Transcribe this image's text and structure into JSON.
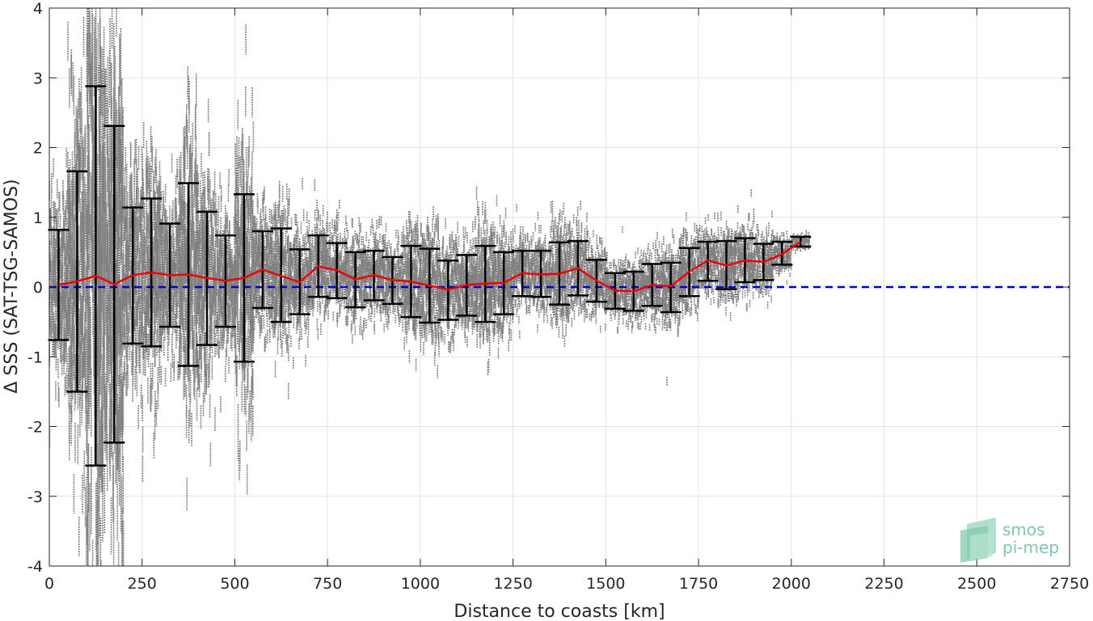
{
  "chart_data": {
    "type": "scatter",
    "xlabel": "Distance to coasts [km]",
    "ylabel": "Δ SSS (SAT-TSG-SAMOS)",
    "xlim": [
      0,
      2750
    ],
    "ylim": [
      -4,
      4
    ],
    "xticks": [
      0,
      250,
      500,
      750,
      1000,
      1250,
      1500,
      1750,
      2000,
      2250,
      2500,
      2750
    ],
    "yticks": [
      -4,
      -3,
      -2,
      -1,
      0,
      1,
      2,
      3,
      4
    ],
    "grid": true,
    "reference_line": {
      "y": 0,
      "color": "#0000cc",
      "style": "dashed"
    },
    "scatter_color": "#808080",
    "series": [
      {
        "type": "errorbar",
        "color": "#000000",
        "x": [
          25,
          75,
          125,
          175,
          225,
          275,
          325,
          375,
          425,
          475,
          525,
          575,
          625,
          675,
          725,
          775,
          825,
          875,
          925,
          975,
          1025,
          1075,
          1125,
          1175,
          1225,
          1275,
          1325,
          1375,
          1425,
          1475,
          1525,
          1575,
          1625,
          1675,
          1725,
          1775,
          1825,
          1875,
          1925,
          1975,
          2025
        ],
        "mean": [
          0.03,
          0.08,
          0.16,
          0.04,
          0.17,
          0.21,
          0.17,
          0.18,
          0.13,
          0.09,
          0.13,
          0.25,
          0.16,
          0.07,
          0.3,
          0.24,
          0.11,
          0.17,
          0.1,
          0.08,
          0.02,
          -0.04,
          0.03,
          0.05,
          0.06,
          0.2,
          0.18,
          0.19,
          0.27,
          0.09,
          -0.05,
          -0.06,
          0.03,
          0.01,
          0.22,
          0.38,
          0.31,
          0.38,
          0.36,
          0.47,
          0.65
        ],
        "upper": [
          0.82,
          1.66,
          2.88,
          2.31,
          1.14,
          1.27,
          0.91,
          1.49,
          1.08,
          0.74,
          1.33,
          0.8,
          0.84,
          0.54,
          0.74,
          0.63,
          0.5,
          0.52,
          0.43,
          0.59,
          0.55,
          0.38,
          0.46,
          0.59,
          0.5,
          0.52,
          0.52,
          0.64,
          0.66,
          0.39,
          0.2,
          0.22,
          0.33,
          0.35,
          0.56,
          0.65,
          0.66,
          0.7,
          0.62,
          0.65,
          0.72
        ],
        "lower": [
          -0.76,
          -1.5,
          -2.56,
          -2.23,
          -0.81,
          -0.85,
          -0.57,
          -1.13,
          -0.83,
          -0.57,
          -1.07,
          -0.3,
          -0.5,
          -0.39,
          -0.14,
          -0.16,
          -0.29,
          -0.19,
          -0.24,
          -0.43,
          -0.51,
          -0.47,
          -0.41,
          -0.5,
          -0.39,
          -0.13,
          -0.14,
          -0.25,
          -0.12,
          -0.21,
          -0.31,
          -0.34,
          -0.27,
          -0.36,
          -0.13,
          0.09,
          -0.03,
          0.07,
          0.1,
          0.32,
          0.58
        ]
      }
    ]
  },
  "logo": {
    "line1": "smos",
    "line2": "pi-mep"
  }
}
